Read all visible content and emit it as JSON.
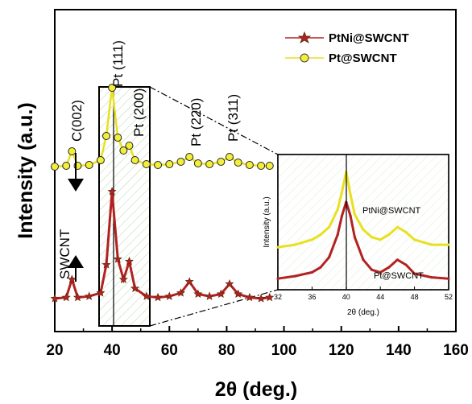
{
  "chart_data": [
    {
      "type": "line",
      "xlabel": "2θ (deg.)",
      "ylabel": "Intensity (a.u.)",
      "xlim": [
        20,
        160
      ],
      "xticks": [
        "20",
        "40",
        "60",
        "80",
        "100",
        "120",
        "140",
        "160"
      ],
      "series": [
        {
          "name": "PtNi@SWCNT",
          "color": "#b22222",
          "marker": "star",
          "x": [
            20,
            24,
            26,
            28,
            32,
            36,
            38,
            40,
            42,
            44,
            46,
            48,
            52,
            56,
            60,
            64,
            67,
            70,
            74,
            78,
            81,
            84,
            88,
            92,
            95
          ],
          "values": [
            0.05,
            0.06,
            0.22,
            0.06,
            0.07,
            0.1,
            0.35,
            1.0,
            0.4,
            0.22,
            0.38,
            0.14,
            0.07,
            0.06,
            0.07,
            0.1,
            0.2,
            0.09,
            0.07,
            0.09,
            0.18,
            0.09,
            0.06,
            0.05,
            0.06
          ]
        },
        {
          "name": "Pt@SWCNT",
          "color": "#e8e020",
          "marker": "circle",
          "x": [
            20,
            24,
            26,
            28,
            32,
            36,
            38,
            40,
            42,
            44,
            46,
            48,
            52,
            56,
            60,
            64,
            67,
            70,
            74,
            78,
            81,
            84,
            88,
            92,
            95
          ],
          "values": [
            0.02,
            0.03,
            0.21,
            0.03,
            0.04,
            0.1,
            0.4,
            1.0,
            0.38,
            0.22,
            0.28,
            0.1,
            0.05,
            0.04,
            0.05,
            0.08,
            0.14,
            0.06,
            0.05,
            0.08,
            0.14,
            0.07,
            0.04,
            0.03,
            0.03
          ]
        }
      ],
      "annotations": [
        "C(002)",
        "Pt (111)",
        "Pt (200)",
        "Pt (220)",
        "Pt (311)",
        "SWCNT"
      ],
      "legend": "top-right"
    },
    {
      "type": "line",
      "xlabel": "2θ (deg.)",
      "ylabel": "Intensity (a.u.)",
      "xlim": [
        32,
        52
      ],
      "xticks": [
        "32",
        "36",
        "40",
        "44",
        "48",
        "52"
      ],
      "series": [
        {
          "name": "PtNi@SWCNT",
          "color": "#e8e020",
          "x": [
            32,
            34,
            36,
            37,
            38,
            39,
            39.5,
            40,
            40.5,
            41,
            42,
            43,
            44,
            45,
            46,
            47,
            48,
            50,
            52
          ],
          "values": [
            0.3,
            0.32,
            0.36,
            0.4,
            0.46,
            0.6,
            0.74,
            0.9,
            0.72,
            0.56,
            0.44,
            0.38,
            0.36,
            0.4,
            0.46,
            0.42,
            0.36,
            0.32,
            0.32
          ]
        },
        {
          "name": "Pt@SWCNT",
          "color": "#b22222",
          "x": [
            32,
            34,
            36,
            37,
            38,
            39,
            39.5,
            40,
            40.5,
            41,
            42,
            43,
            44,
            45,
            46,
            47,
            48,
            50,
            52
          ],
          "values": [
            0.05,
            0.07,
            0.1,
            0.14,
            0.22,
            0.4,
            0.55,
            0.66,
            0.55,
            0.38,
            0.2,
            0.12,
            0.1,
            0.14,
            0.2,
            0.16,
            0.09,
            0.06,
            0.05
          ]
        }
      ]
    }
  ]
}
